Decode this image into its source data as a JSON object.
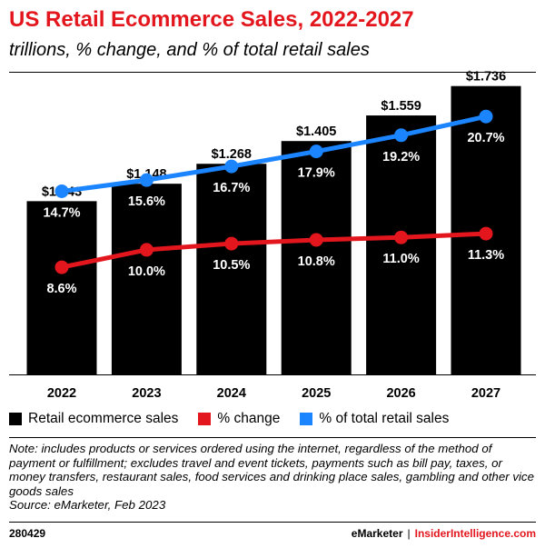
{
  "header": {
    "title": "US Retail Ecommerce Sales, 2022-2027",
    "subtitle": "trillions, % change, and % of total retail sales"
  },
  "chart_data": {
    "type": "bar",
    "title": "US Retail Ecommerce Sales, 2022-2027",
    "subtitle": "trillions, % change, and % of total retail sales",
    "categories": [
      "2022",
      "2023",
      "2024",
      "2025",
      "2026",
      "2027"
    ],
    "series": [
      {
        "name": "Retail ecommerce sales",
        "type": "bar",
        "color": "#000000",
        "values": [
          1.043,
          1.148,
          1.268,
          1.405,
          1.559,
          1.736
        ],
        "labels": [
          "$1.043",
          "$1.148",
          "$1.268",
          "$1.405",
          "$1.559",
          "$1.736"
        ]
      },
      {
        "name": "% change",
        "type": "line",
        "color": "#e3161e",
        "values": [
          8.6,
          10.0,
          10.5,
          10.8,
          11.0,
          11.3
        ],
        "labels": [
          "8.6%",
          "10.0%",
          "10.5%",
          "10.8%",
          "11.0%",
          "11.3%"
        ]
      },
      {
        "name": "% of total retail sales",
        "type": "line",
        "color": "#1b84ff",
        "values": [
          14.7,
          15.6,
          16.7,
          17.9,
          19.2,
          20.7
        ],
        "labels": [
          "14.7%",
          "15.6%",
          "16.7%",
          "17.9%",
          "19.2%",
          "20.7%"
        ]
      }
    ],
    "ylim_bars": [
      0,
      1.8
    ],
    "ylim_lines": [
      0,
      24
    ],
    "grid": false,
    "legend_position": "bottom"
  },
  "legend": {
    "items": [
      {
        "label": "Retail ecommerce sales",
        "color": "#000000"
      },
      {
        "label": "% change",
        "color": "#e3161e"
      },
      {
        "label": "% of total retail sales",
        "color": "#1b84ff"
      }
    ]
  },
  "note": {
    "text": "Note: includes products or services ordered using the internet, regardless of the method of payment or fulfillment; excludes travel and event tickets, payments such as bill pay, taxes, or money transfers, restaurant sales, food services and drinking place sales, gambling and other vice goods sales",
    "source": "Source: eMarketer, Feb 2023"
  },
  "footer": {
    "id": "280429",
    "brand": "eMarketer",
    "separator": "|",
    "site": "InsiderIntelligence.com"
  }
}
